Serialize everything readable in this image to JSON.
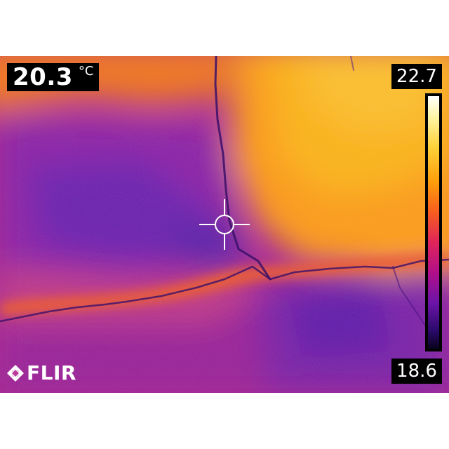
{
  "spot": {
    "value": "20.3",
    "unit": "°C"
  },
  "scale": {
    "max": "22.7",
    "min": "18.6",
    "palette": "iron"
  },
  "brand": {
    "name": "FLIR"
  },
  "icons": {
    "crosshair": "crosshair-icon",
    "logo": "flir-logo-icon"
  },
  "colors": {
    "hot": "#ffb20a",
    "warm": "#f0561f",
    "mid": "#c2168c",
    "cool": "#6a1cb0",
    "cold": "#4a1ca0"
  }
}
